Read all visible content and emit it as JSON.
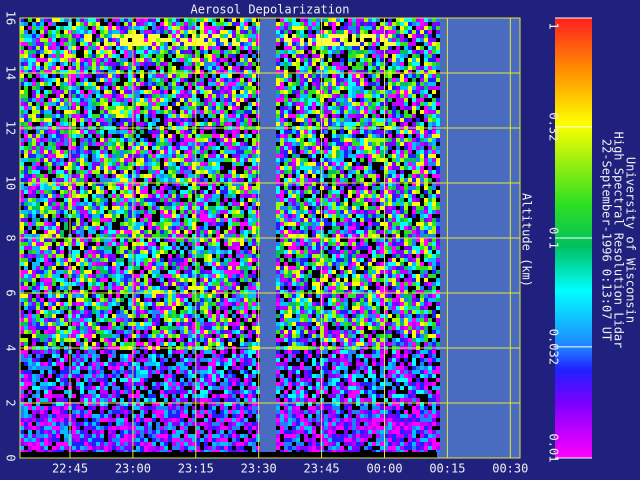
{
  "chart_data": {
    "type": "heatmap",
    "title": "Aerosol Depolarization",
    "y_label": "Altitude (km)",
    "xticks": [
      "22:45",
      "23:00",
      "23:15",
      "23:30",
      "23:45",
      "00:00",
      "00:15",
      "00:30"
    ],
    "ylim": [
      0,
      16
    ],
    "yticks": [
      0,
      2,
      4,
      6,
      8,
      10,
      12,
      14,
      16
    ],
    "grid": true,
    "colorbar": {
      "scale": "log",
      "lim": [
        0.01,
        1
      ],
      "ticks": [
        1,
        0.32,
        0.1,
        0.032,
        0.01
      ]
    },
    "annotations": [
      "University of Wisconsin",
      "High Spectral Resolution Lidar",
      "22-September-1996  0:13:07 UT"
    ]
  }
}
